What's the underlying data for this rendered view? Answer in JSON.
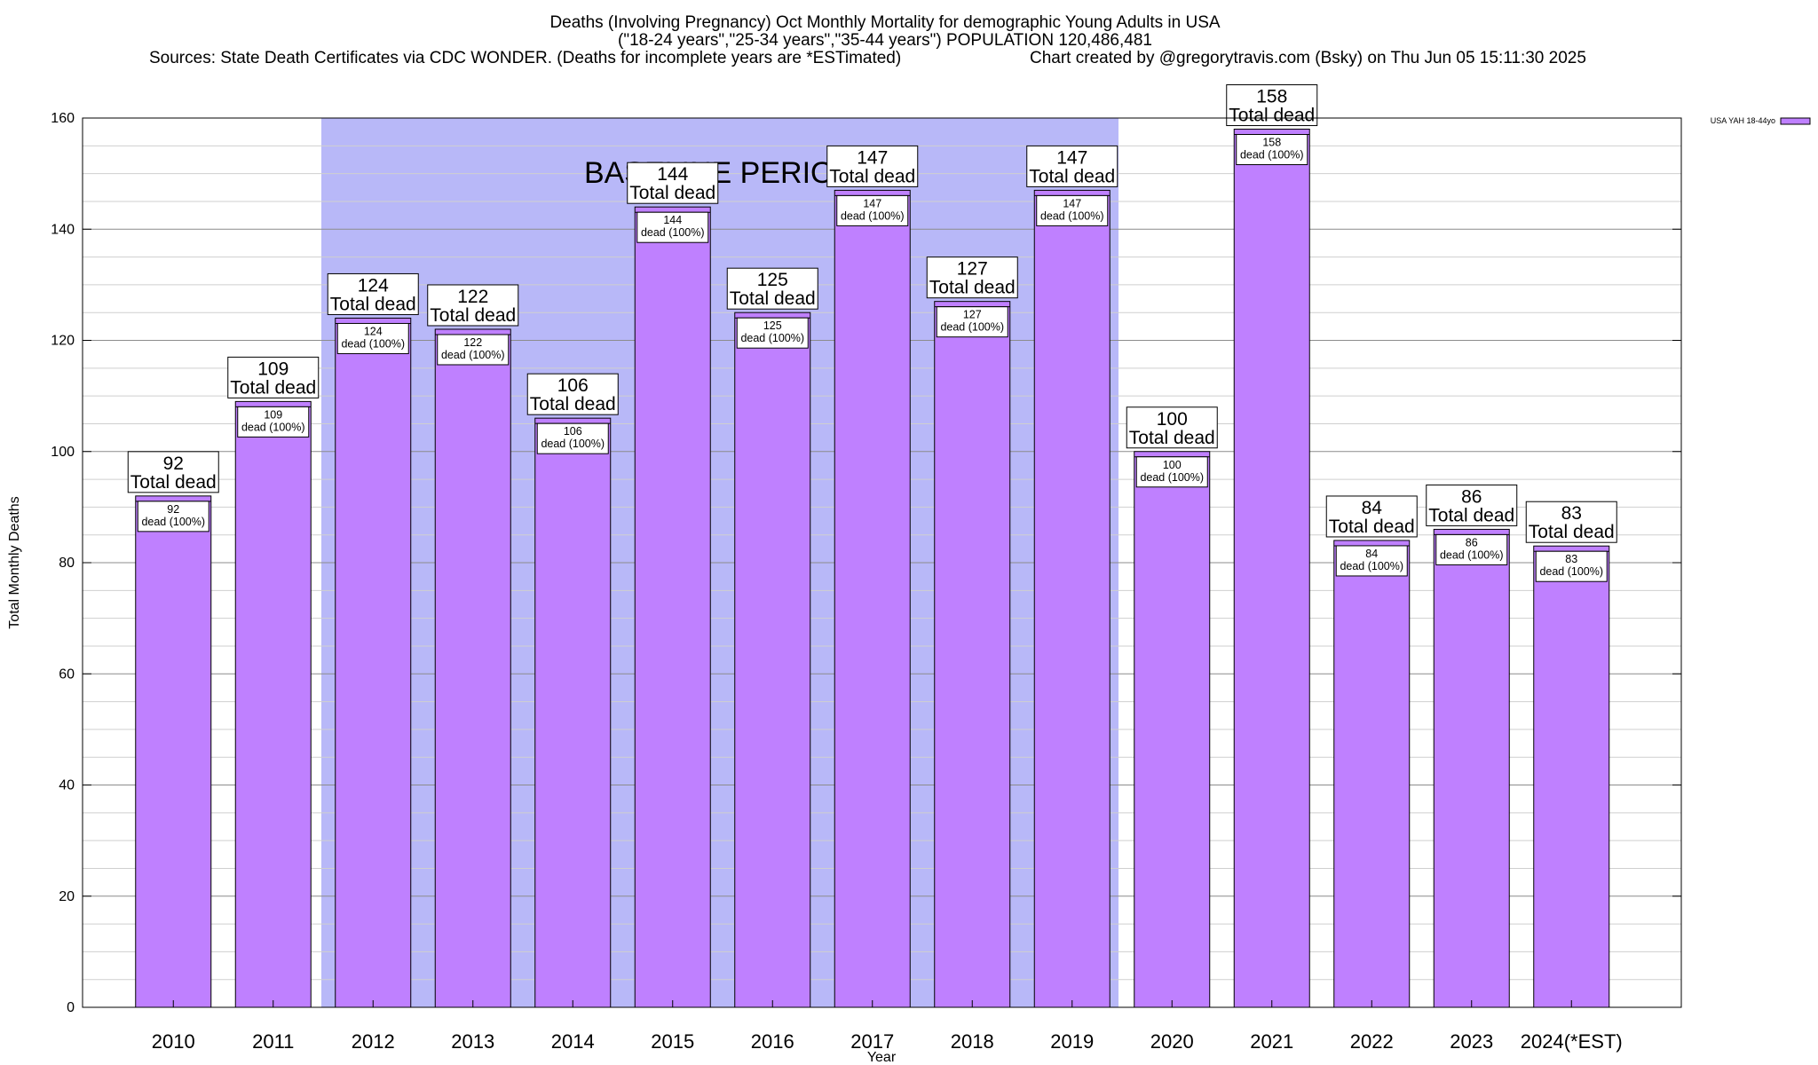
{
  "header": {
    "title_line1": "Deaths (Involving Pregnancy) Oct Monthly Mortality for demographic Young Adults in USA",
    "title_line2": "(\"18-24 years\",\"25-34 years\",\"35-44 years\") POPULATION 120,486,481",
    "title_line3_left": "Sources: State Death Certificates via CDC WONDER. (Deaths for incomplete years are *ESTimated)",
    "title_line3_right": "Chart created by @gregorytravis.com (Bsky) on Thu Jun 05 15:11:30 2025"
  },
  "chart_data": {
    "type": "bar",
    "title": "Deaths (Involving Pregnancy) Oct Monthly Mortality for demographic Young Adults in USA",
    "xlabel": "Year",
    "ylabel": "Total Monthly Deaths",
    "ylim": [
      0,
      160
    ],
    "yticks": [
      0,
      20,
      40,
      60,
      80,
      100,
      120,
      140,
      160
    ],
    "grid": true,
    "legend_placement": "top-right",
    "categories": [
      "2010",
      "2011",
      "2012",
      "2013",
      "2014",
      "2015",
      "2016",
      "2017",
      "2018",
      "2019",
      "2020",
      "2021",
      "2022",
      "2023",
      "2024(*EST)"
    ],
    "series": [
      {
        "name": "USA YAH 18-44yo",
        "color": "#bf80ff",
        "values": [
          92,
          109,
          124,
          122,
          106,
          144,
          125,
          147,
          127,
          147,
          100,
          158,
          84,
          86,
          83
        ]
      }
    ],
    "total_label_text": "Total dead",
    "bar_label_text": "dead (100%)",
    "baseline_period": {
      "label": "BASELINE PERIOD",
      "start": "2012",
      "end": "2019",
      "color": "#b8b8f8"
    }
  }
}
